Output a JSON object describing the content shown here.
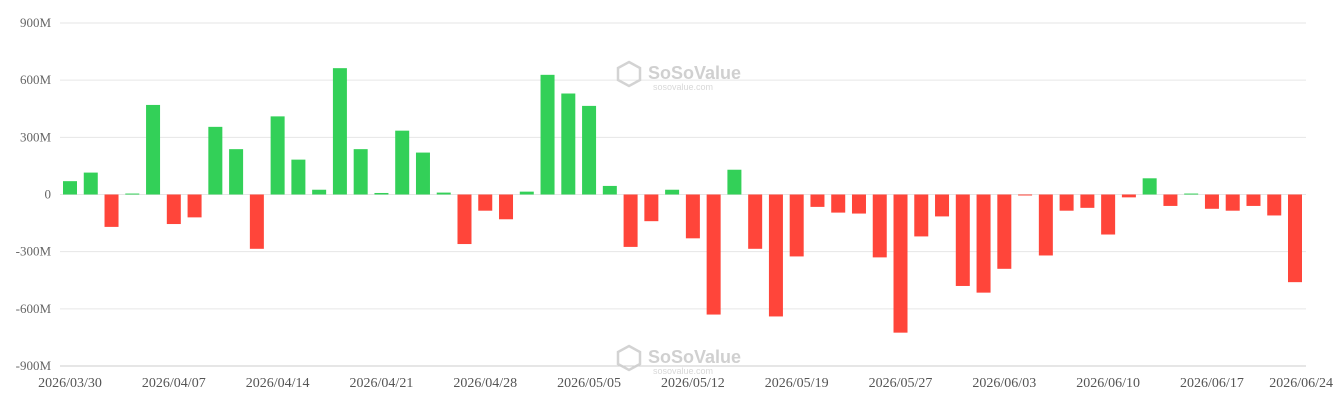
{
  "watermark": {
    "brand": "SoSoValue",
    "site": "sosovalue.com"
  },
  "colors": {
    "positive": "#33d058",
    "negative": "#ff453a"
  },
  "chart_data": {
    "type": "bar",
    "ylim": [
      -900,
      900
    ],
    "y_unit_suffix": "M",
    "y_ticks": [
      "900M",
      "600M",
      "300M",
      "0",
      "-300M",
      "-600M",
      "-900M"
    ],
    "y_tick_values": [
      900,
      600,
      300,
      0,
      -300,
      -600,
      -900
    ],
    "x_tick_labels": [
      "2026/03/30",
      "2026/04/07",
      "2026/04/14",
      "2026/04/21",
      "2026/04/28",
      "2026/05/05",
      "2026/05/12",
      "2026/05/19",
      "2026/05/27",
      "2026/06/03",
      "2026/06/10",
      "2026/06/17",
      "2026/06/24"
    ],
    "x_tick_bar_index": [
      0,
      5,
      10,
      15,
      20,
      25,
      30,
      35,
      40,
      45,
      50,
      55,
      60
    ],
    "values": [
      70,
      115,
      -170,
      5,
      470,
      -155,
      -120,
      355,
      238,
      -285,
      410,
      183,
      25,
      663,
      238,
      8,
      335,
      220,
      10,
      -260,
      -85,
      -130,
      15,
      628,
      530,
      465,
      45,
      -275,
      -140,
      25,
      -230,
      -630,
      130,
      -285,
      -640,
      -325,
      -65,
      -95,
      -100,
      -330,
      -725,
      -220,
      -115,
      -480,
      -515,
      -390,
      -5,
      -320,
      -85,
      -70,
      -210,
      -15,
      85,
      -60,
      5,
      -75,
      -85,
      -60,
      -110,
      -460
    ]
  }
}
